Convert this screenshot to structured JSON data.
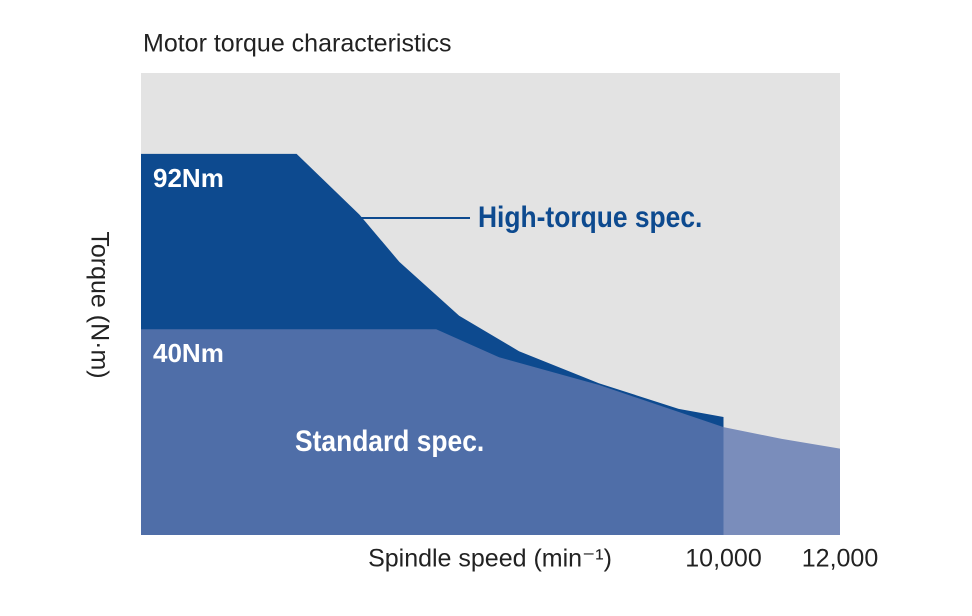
{
  "chart_data": {
    "type": "area",
    "title": "Motor torque characteristics",
    "xlabel": "Spindle speed (min⁻¹)",
    "ylabel": "Torque (N·m)",
    "xlim": [
      0,
      12000
    ],
    "ylim": [
      -21,
      116
    ],
    "xticks": [
      {
        "value": 10000,
        "label": "10,000"
      },
      {
        "value": 12000,
        "label": "12,000"
      }
    ],
    "yticks": [
      {
        "value": 92,
        "label": "92Nm"
      },
      {
        "value": 40,
        "label": "40Nm"
      }
    ],
    "grid": false,
    "series": [
      {
        "name": "High-torque spec.",
        "color": "#0d4a8f",
        "x": [
          0,
          2671,
          3750,
          4435,
          5462,
          6490,
          7860,
          9230,
          10000
        ],
        "values": [
          92,
          92,
          74,
          60,
          44,
          33.5,
          24,
          16.4,
          14
        ]
      },
      {
        "name": "Standard spec.",
        "color": "#4f6ea8",
        "x": [
          0,
          5068,
          6147,
          7860,
          10000
        ],
        "values": [
          40,
          40,
          31.7,
          23.5,
          11
        ]
      },
      {
        "color": "#7a8dbb",
        "x": [
          10000,
          11000,
          12000
        ],
        "values": [
          11,
          7.5,
          4.6
        ]
      }
    ]
  }
}
